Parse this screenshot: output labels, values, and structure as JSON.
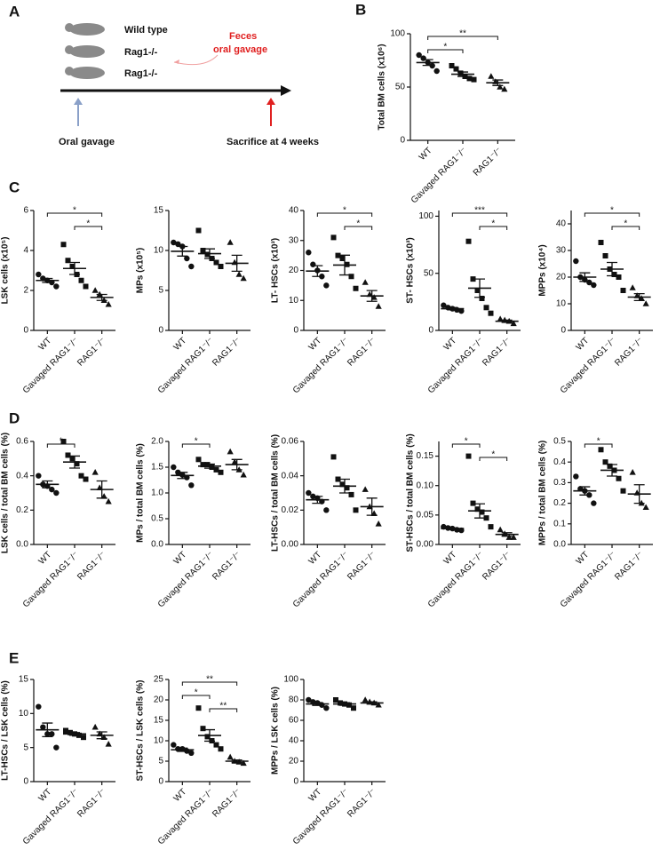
{
  "panels": [
    "A",
    "B",
    "C",
    "D",
    "E"
  ],
  "diagram": {
    "mice": [
      "Wild type",
      "Rag1-/-",
      "Rag1-/-"
    ],
    "gavage_note": [
      "Feces",
      "oral gavage"
    ],
    "start_label": "Oral gavage",
    "end_label": "Sacrifice at 4 weeks"
  },
  "marker_shapes": [
    "circle",
    "square",
    "triangle"
  ],
  "chart_data": [
    {
      "type": "dot",
      "y_label": "Total BM cells (x10⁶)",
      "categories": [
        "WT",
        "Gavaged RAG1⁻/⁻",
        "RAG1⁻/⁻"
      ],
      "groups": [
        [
          80,
          77,
          73,
          70,
          65
        ],
        [
          70,
          67,
          63,
          60,
          58,
          57
        ],
        [
          60,
          55,
          50,
          48
        ]
      ],
      "means": [
        73,
        62,
        54
      ],
      "sems": [
        2.7,
        2.1,
        2.6
      ],
      "ylim": [
        0,
        100
      ],
      "yticks": [
        0,
        50,
        100
      ],
      "brackets": [
        {
          "from": 0,
          "to": 2,
          "label": "**"
        },
        {
          "from": 0,
          "to": 1,
          "label": "*"
        }
      ]
    },
    {
      "type": "dot",
      "y_label": "LSK cells (x10⁵)",
      "categories": [
        "WT",
        "Gavaged RAG1⁻/⁻",
        "RAG1⁻/⁻"
      ],
      "groups": [
        [
          2.8,
          2.6,
          2.5,
          2.4,
          2.2
        ],
        [
          4.3,
          3.5,
          3.2,
          2.8,
          2.5,
          2.2
        ],
        [
          2.0,
          1.8,
          1.5,
          1.3
        ]
      ],
      "means": [
        2.5,
        3.1,
        1.65
      ],
      "sems": [
        0.1,
        0.3,
        0.15
      ],
      "ylim": [
        0,
        6
      ],
      "yticks": [
        0,
        2,
        4,
        6
      ],
      "brackets": [
        {
          "from": 0,
          "to": 2,
          "label": "*"
        },
        {
          "from": 1,
          "to": 2,
          "label": "*"
        }
      ]
    },
    {
      "type": "dot",
      "y_label": "MPs (x10⁵)",
      "categories": [
        "WT",
        "Gavaged RAG1⁻/⁻",
        "RAG1⁻/⁻"
      ],
      "groups": [
        [
          11,
          10.8,
          10.5,
          9,
          8
        ],
        [
          12.5,
          10,
          9.5,
          9,
          8.5,
          8
        ],
        [
          11,
          8.5,
          7,
          6.5
        ]
      ],
      "means": [
        9.9,
        9.6,
        8.4
      ],
      "sems": [
        0.6,
        0.6,
        1.0
      ],
      "ylim": [
        0,
        15
      ],
      "yticks": [
        0,
        5,
        10,
        15
      ],
      "brackets": []
    },
    {
      "type": "dot",
      "y_label": "LT- HSCs (x10³)",
      "categories": [
        "WT",
        "Gavaged RAG1⁻/⁻",
        "RAG1⁻/⁻"
      ],
      "groups": [
        [
          26,
          22,
          20,
          18,
          15
        ],
        [
          31,
          25,
          24,
          22,
          18,
          14
        ],
        [
          16,
          12,
          11,
          8
        ]
      ],
      "means": [
        19.8,
        21.8,
        11.5
      ],
      "sems": [
        1.8,
        3.3,
        1.8
      ],
      "ylim": [
        0,
        40
      ],
      "yticks": [
        0,
        10,
        20,
        30,
        40
      ],
      "brackets": [
        {
          "from": 0,
          "to": 2,
          "label": "*"
        },
        {
          "from": 1,
          "to": 2,
          "label": "*"
        }
      ]
    },
    {
      "type": "dot",
      "y_label": "ST- HSCs (x10³)",
      "categories": [
        "WT",
        "Gavaged RAG1⁻/⁻",
        "RAG1⁻/⁻"
      ],
      "groups": [
        [
          22,
          20,
          19,
          18,
          17
        ],
        [
          78,
          45,
          35,
          28,
          20,
          15
        ],
        [
          10,
          9,
          8,
          6
        ]
      ],
      "means": [
        19,
        37,
        8
      ],
      "sems": [
        1,
        8,
        1
      ],
      "ylim": [
        0,
        105
      ],
      "yticks": [
        0,
        50,
        100
      ],
      "brackets": [
        {
          "from": 0,
          "to": 2,
          "label": "***"
        },
        {
          "from": 1,
          "to": 2,
          "label": "*"
        }
      ]
    },
    {
      "type": "dot",
      "y_label": "MPPs (x10⁴)",
      "categories": [
        "WT",
        "Gavaged RAG1⁻/⁻",
        "RAG1⁻/⁻"
      ],
      "groups": [
        [
          26,
          20,
          19,
          18,
          17
        ],
        [
          33,
          28,
          23,
          21,
          20,
          15
        ],
        [
          16,
          13,
          12,
          10
        ]
      ],
      "means": [
        20,
        23,
        12.5
      ],
      "sems": [
        1.6,
        2.5,
        1.3
      ],
      "ylim": [
        0,
        45
      ],
      "yticks": [
        0,
        10,
        20,
        30,
        40
      ],
      "brackets": [
        {
          "from": 0,
          "to": 2,
          "label": "*"
        },
        {
          "from": 1,
          "to": 2,
          "label": "*"
        }
      ]
    },
    {
      "type": "dot",
      "y_label": "LSK cells / total BM cells (%)",
      "categories": [
        "WT",
        "Gavaged RAG1⁻/⁻",
        "RAG1⁻/⁻"
      ],
      "groups": [
        [
          0.4,
          0.35,
          0.34,
          0.32,
          0.3
        ],
        [
          0.6,
          0.52,
          0.5,
          0.47,
          0.4,
          0.38
        ],
        [
          0.42,
          0.33,
          0.28,
          0.25
        ]
      ],
      "means": [
        0.35,
        0.48,
        0.32
      ],
      "sems": [
        0.02,
        0.035,
        0.05
      ],
      "ylim": [
        0,
        0.6
      ],
      "yticks": [
        {
          "value": 0,
          "label": "0.0"
        },
        0.2,
        0.4,
        0.6
      ],
      "brackets": [
        {
          "from": 0,
          "to": 1,
          "label": "*"
        }
      ]
    },
    {
      "type": "dot",
      "y_label": "MPs / total BM cells (%)",
      "categories": [
        "WT",
        "Gavaged RAG1⁻/⁻",
        "RAG1⁻/⁻"
      ],
      "groups": [
        [
          1.5,
          1.4,
          1.35,
          1.3,
          1.15
        ],
        [
          1.65,
          1.55,
          1.55,
          1.5,
          1.45,
          1.4
        ],
        [
          1.8,
          1.6,
          1.45,
          1.35
        ]
      ],
      "means": [
        1.34,
        1.52,
        1.55
      ],
      "sems": [
        0.06,
        0.04,
        0.1
      ],
      "ylim": [
        0,
        2
      ],
      "yticks": [
        {
          "value": 0,
          "label": "0.0"
        },
        0.5,
        {
          "value": 1,
          "label": "1.0"
        },
        1.5,
        {
          "value": 2,
          "label": "2.0"
        }
      ],
      "brackets": [
        {
          "from": 0,
          "to": 1,
          "label": "*"
        }
      ]
    },
    {
      "type": "dot",
      "y_label": "LT-HSCs / total BM cells (%)",
      "categories": [
        "WT",
        "Gavaged RAG1⁻/⁻",
        "RAG1⁻/⁻"
      ],
      "groups": [
        [
          0.03,
          0.028,
          0.027,
          0.025,
          0.02
        ],
        [
          0.051,
          0.038,
          0.035,
          0.033,
          0.029,
          0.02
        ],
        [
          0.032,
          0.022,
          0.018,
          0.012
        ]
      ],
      "means": [
        0.026,
        0.034,
        0.022
      ],
      "sems": [
        0.002,
        0.004,
        0.005
      ],
      "ylim": [
        0,
        0.06
      ],
      "yticks": [
        {
          "value": 0,
          "label": "0.00"
        },
        0.02,
        0.04,
        0.06
      ],
      "brackets": []
    },
    {
      "type": "dot",
      "y_label": "ST-HSCs / total BM cells (%)",
      "categories": [
        "WT",
        "Gavaged RAG1⁻/⁻",
        "RAG1⁻/⁻"
      ],
      "groups": [
        [
          0.03,
          0.028,
          0.027,
          0.025,
          0.024
        ],
        [
          0.15,
          0.07,
          0.06,
          0.055,
          0.045,
          0.03
        ],
        [
          0.025,
          0.018,
          0.012,
          0.012
        ]
      ],
      "means": [
        0.027,
        0.057,
        0.017
      ],
      "sems": [
        0.001,
        0.012,
        0.003
      ],
      "ylim": [
        0,
        0.175
      ],
      "yticks": [
        {
          "value": 0,
          "label": "0.00"
        },
        0.05,
        {
          "value": 0.1,
          "label": "0.10"
        },
        0.15
      ],
      "brackets": [
        {
          "from": 0,
          "to": 1,
          "label": "*"
        },
        {
          "from": 1,
          "to": 2,
          "label": "*"
        }
      ]
    },
    {
      "type": "dot",
      "y_label": "MPPs / total BM cells (%)",
      "categories": [
        "WT",
        "Gavaged RAG1⁻/⁻",
        "RAG1⁻/⁻"
      ],
      "groups": [
        [
          0.33,
          0.27,
          0.26,
          0.24,
          0.2
        ],
        [
          0.46,
          0.4,
          0.38,
          0.36,
          0.32,
          0.26
        ],
        [
          0.35,
          0.25,
          0.2,
          0.18
        ]
      ],
      "means": [
        0.26,
        0.36,
        0.245
      ],
      "sems": [
        0.02,
        0.028,
        0.045
      ],
      "ylim": [
        0,
        0.5
      ],
      "yticks": [
        {
          "value": 0,
          "label": "0.0"
        },
        0.1,
        0.2,
        0.3,
        0.4,
        0.5
      ],
      "brackets": [
        {
          "from": 0,
          "to": 1,
          "label": "*"
        }
      ]
    },
    {
      "type": "dot",
      "y_label": "LT-HSCs / LSK cells (%)",
      "categories": [
        "WT",
        "Gavaged RAG1⁻/⁻",
        "RAG1⁻/⁻"
      ],
      "groups": [
        [
          11,
          8,
          7,
          7,
          5
        ],
        [
          7.5,
          7.2,
          7,
          6.8,
          6.5
        ],
        [
          8,
          7,
          6.5,
          5.5
        ]
      ],
      "means": [
        7.6,
        7,
        6.8
      ],
      "sems": [
        1,
        0.2,
        0.5
      ],
      "ylim": [
        0,
        15
      ],
      "yticks": [
        0,
        5,
        10,
        15
      ],
      "brackets": []
    },
    {
      "type": "dot",
      "y_label": "ST-HSCs / LSK cells (%)",
      "categories": [
        "WT",
        "Gavaged RAG1⁻/⁻",
        "RAG1⁻/⁻"
      ],
      "groups": [
        [
          9,
          8,
          8,
          7.5,
          7
        ],
        [
          18,
          13,
          11,
          10,
          9,
          8
        ],
        [
          6,
          5,
          4.8,
          4.5
        ]
      ],
      "means": [
        7.8,
        11.3,
        5
      ],
      "sems": [
        0.4,
        1.4,
        0.3
      ],
      "ylim": [
        0,
        25
      ],
      "yticks": [
        0,
        5,
        10,
        15,
        20,
        25
      ],
      "brackets": [
        {
          "from": 0,
          "to": 2,
          "label": "**"
        },
        {
          "from": 0,
          "to": 1,
          "label": "*"
        },
        {
          "from": 1,
          "to": 2,
          "label": "**"
        }
      ]
    },
    {
      "type": "dot",
      "y_label": "MPPs / LSK cells (%)",
      "categories": [
        "WT",
        "Gavaged RAG1⁻/⁻",
        "RAG1⁻/⁻"
      ],
      "groups": [
        [
          80,
          78,
          77,
          75,
          72
        ],
        [
          80,
          77,
          76,
          75,
          72
        ],
        [
          80,
          78,
          77,
          75
        ]
      ],
      "means": [
        76,
        76,
        77
      ],
      "sems": [
        1.4,
        1.3,
        1.1
      ],
      "ylim": [
        0,
        100
      ],
      "yticks": [
        0,
        20,
        40,
        60,
        80,
        100
      ],
      "brackets": []
    }
  ]
}
